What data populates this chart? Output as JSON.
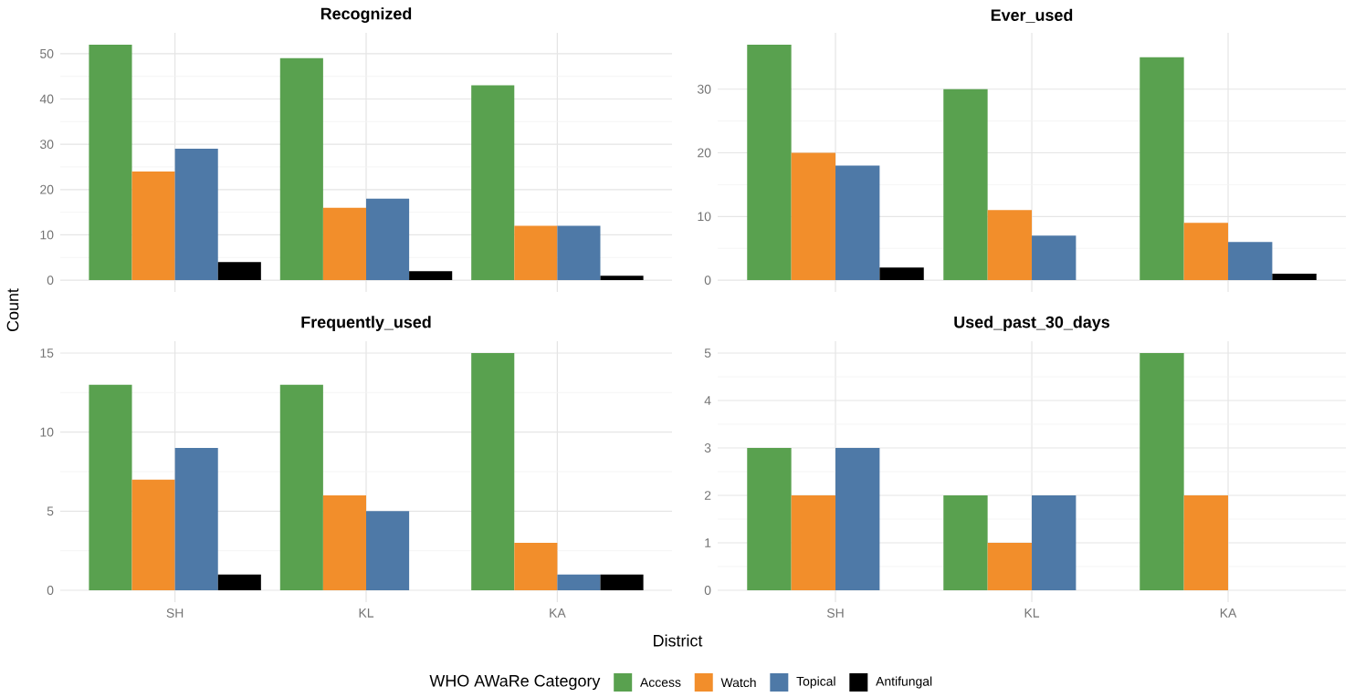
{
  "chart_data": [
    {
      "type": "bar",
      "title": "Recognized",
      "ylabel": "Count",
      "legend": "bottom",
      "legend_title": "WHO AWaRe Category",
      "categories": [
        null,
        null,
        null
      ],
      "tick_labels": "y",
      "grid": true,
      "ylim": [
        -2.6,
        54.6
      ],
      "yticks": [
        0,
        10,
        20,
        30,
        40,
        50
      ],
      "series": [
        {
          "name": "Access",
          "color": "#59a14f",
          "values": [
            52,
            49,
            43
          ]
        },
        {
          "name": "Watch",
          "color": "#f28e2b",
          "values": [
            24,
            16,
            12
          ]
        },
        {
          "name": "Topical",
          "color": "#4e79a7",
          "values": [
            29,
            18,
            12
          ]
        },
        {
          "name": "Antifungal",
          "color": "#000000",
          "values": [
            4,
            2,
            1
          ]
        }
      ]
    },
    {
      "type": "bar",
      "title": "Ever_used",
      "categories": [
        null,
        null,
        null
      ],
      "tick_labels": "y",
      "grid": true,
      "ylim": [
        -1.85,
        38.85
      ],
      "yticks": [
        0,
        10,
        20,
        30
      ],
      "series": [
        {
          "color": "#59a14f",
          "values": [
            37,
            30,
            35
          ]
        },
        {
          "color": "#f28e2b",
          "values": [
            20,
            11,
            9
          ]
        },
        {
          "color": "#4e79a7",
          "values": [
            18,
            7,
            6
          ]
        },
        {
          "color": "#000000",
          "values": [
            2,
            null,
            1
          ]
        }
      ]
    },
    {
      "type": "bar",
      "title": "Frequently_used",
      "xlabel": "District",
      "categories": [
        "SH",
        "KL",
        "KA"
      ],
      "grid": true,
      "ylim": [
        -0.75,
        15.75
      ],
      "yticks": [
        0,
        5,
        10,
        15
      ],
      "series": [
        {
          "color": "#59a14f",
          "values": [
            13,
            13,
            15
          ]
        },
        {
          "color": "#f28e2b",
          "values": [
            7,
            6,
            3
          ]
        },
        {
          "color": "#4e79a7",
          "values": [
            9,
            5,
            1
          ]
        },
        {
          "color": "#000000",
          "values": [
            1,
            null,
            1
          ]
        }
      ]
    },
    {
      "type": "bar",
      "title": "Used_past_30_days",
      "categories": [
        "SH",
        "KL",
        "KA"
      ],
      "grid": true,
      "ylim": [
        -0.25,
        5.25
      ],
      "yticks": [
        0,
        1,
        2,
        3,
        4,
        5
      ],
      "series": [
        {
          "color": "#59a14f",
          "values": [
            3,
            2,
            5
          ]
        },
        {
          "color": "#f28e2b",
          "values": [
            2,
            1,
            2
          ]
        },
        {
          "color": "#4e79a7",
          "values": [
            3,
            2,
            null
          ]
        },
        {
          "color": "#000000",
          "values": [
            null,
            null,
            null
          ]
        }
      ]
    }
  ]
}
